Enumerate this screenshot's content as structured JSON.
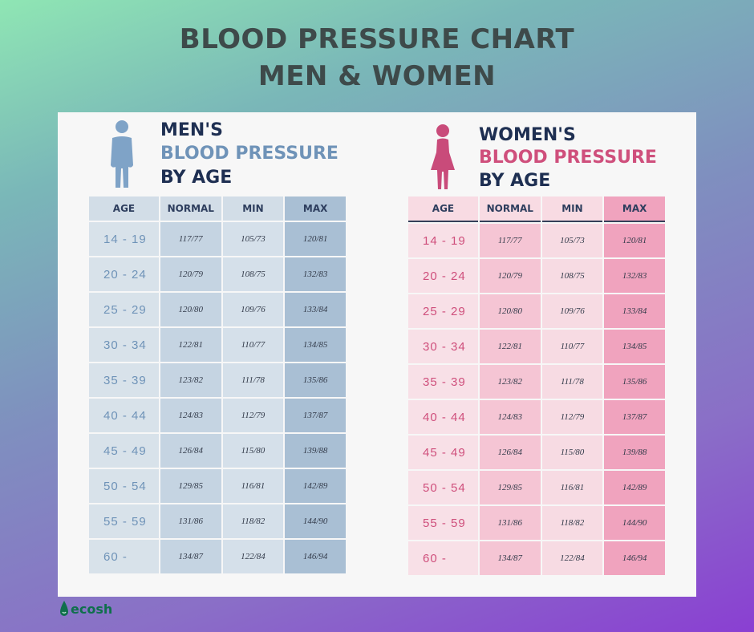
{
  "title": {
    "line1": "BLOOD PRESSURE CHART",
    "line2": "MEN & WOMEN"
  },
  "colors": {
    "men_heading": "#1e2f52",
    "men_accent": "#6f93b8",
    "women_heading": "#1e2f52",
    "women_accent": "#cf4f7c"
  },
  "icons": {
    "men": "male-person-icon",
    "women": "female-person-icon",
    "logo": "water-drop-icon"
  },
  "men": {
    "heading": [
      "MEN'S",
      "BLOOD PRESSURE",
      "BY AGE"
    ],
    "columns": [
      "AGE",
      "NORMAL",
      "MIN",
      "MAX"
    ],
    "rows": [
      [
        "14  -  19",
        "117/77",
        "105/73",
        "120/81"
      ],
      [
        "20  -  24",
        "120/79",
        "108/75",
        "132/83"
      ],
      [
        "25  -  29",
        "120/80",
        "109/76",
        "133/84"
      ],
      [
        "30  -  34",
        "122/81",
        "110/77",
        "134/85"
      ],
      [
        "35  -  39",
        "123/82",
        "111/78",
        "135/86"
      ],
      [
        "40  -  44",
        "124/83",
        "112/79",
        "137/87"
      ],
      [
        "45  -  49",
        "126/84",
        "115/80",
        "139/88"
      ],
      [
        "50  -  54",
        "129/85",
        "116/81",
        "142/89"
      ],
      [
        "55  -  59",
        "131/86",
        "118/82",
        "144/90"
      ],
      [
        "60  -",
        "134/87",
        "122/84",
        "146/94"
      ]
    ]
  },
  "women": {
    "heading": [
      "WOMEN'S",
      "BLOOD PRESSURE",
      "BY AGE"
    ],
    "columns": [
      "AGE",
      "NORMAL",
      "MIN",
      "MAX"
    ],
    "rows": [
      [
        "14  -  19",
        "117/77",
        "105/73",
        "120/81"
      ],
      [
        "20  -  24",
        "120/79",
        "108/75",
        "132/83"
      ],
      [
        "25  -  29",
        "120/80",
        "109/76",
        "133/84"
      ],
      [
        "30  -  34",
        "122/81",
        "110/77",
        "134/85"
      ],
      [
        "35  -  39",
        "123/82",
        "111/78",
        "135/86"
      ],
      [
        "40  -  44",
        "124/83",
        "112/79",
        "137/87"
      ],
      [
        "45  -  49",
        "126/84",
        "115/80",
        "139/88"
      ],
      [
        "50  -  54",
        "129/85",
        "116/81",
        "142/89"
      ],
      [
        "55  -  59",
        "131/86",
        "118/82",
        "144/90"
      ],
      [
        "60  -",
        "134/87",
        "122/84",
        "146/94"
      ]
    ]
  },
  "chart_data": [
    {
      "type": "table",
      "title": "MEN'S BLOOD PRESSURE BY AGE",
      "columns": [
        "AGE",
        "NORMAL",
        "MIN",
        "MAX"
      ],
      "rows": [
        [
          "14 - 19",
          "117/77",
          "105/73",
          "120/81"
        ],
        [
          "20 - 24",
          "120/79",
          "108/75",
          "132/83"
        ],
        [
          "25 - 29",
          "120/80",
          "109/76",
          "133/84"
        ],
        [
          "30 - 34",
          "122/81",
          "110/77",
          "134/85"
        ],
        [
          "35 - 39",
          "123/82",
          "111/78",
          "135/86"
        ],
        [
          "40 - 44",
          "124/83",
          "112/79",
          "137/87"
        ],
        [
          "45 - 49",
          "126/84",
          "115/80",
          "139/88"
        ],
        [
          "50 - 54",
          "129/85",
          "116/81",
          "142/89"
        ],
        [
          "55 - 59",
          "131/86",
          "118/82",
          "144/90"
        ],
        [
          "60 -",
          "134/87",
          "122/84",
          "146/94"
        ]
      ]
    },
    {
      "type": "table",
      "title": "WOMEN'S BLOOD PRESSURE BY AGE",
      "columns": [
        "AGE",
        "NORMAL",
        "MIN",
        "MAX"
      ],
      "rows": [
        [
          "14 - 19",
          "117/77",
          "105/73",
          "120/81"
        ],
        [
          "20 - 24",
          "120/79",
          "108/75",
          "132/83"
        ],
        [
          "25 - 29",
          "120/80",
          "109/76",
          "133/84"
        ],
        [
          "30 - 34",
          "122/81",
          "110/77",
          "134/85"
        ],
        [
          "35 - 39",
          "123/82",
          "111/78",
          "135/86"
        ],
        [
          "40 - 44",
          "124/83",
          "112/79",
          "137/87"
        ],
        [
          "45 - 49",
          "126/84",
          "115/80",
          "139/88"
        ],
        [
          "50 - 54",
          "129/85",
          "116/81",
          "142/89"
        ],
        [
          "55 - 59",
          "131/86",
          "118/82",
          "144/90"
        ],
        [
          "60 -",
          "134/87",
          "122/84",
          "146/94"
        ]
      ]
    }
  ],
  "logo": {
    "text": "ecosh"
  }
}
